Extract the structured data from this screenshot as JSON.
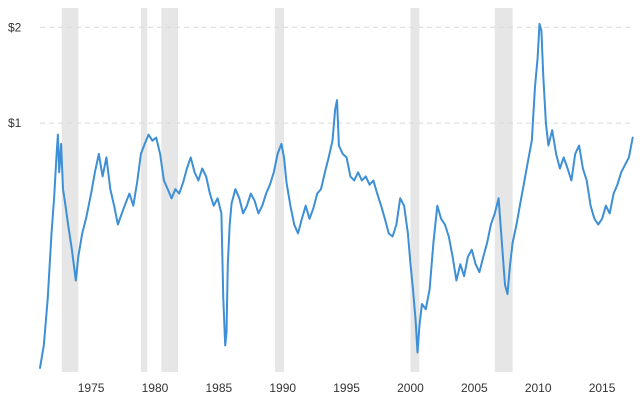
{
  "chart_data": {
    "type": "line",
    "xlim": [
      1971.0,
      2017.5
    ],
    "y_scale": "log",
    "ylim": [
      0.165,
      2.3
    ],
    "y_ticks": [
      {
        "value": 1,
        "label": "$1"
      },
      {
        "value": 2,
        "label": "$2"
      }
    ],
    "x_ticks": [
      {
        "value": 1975,
        "label": "1975"
      },
      {
        "value": 1980,
        "label": "1980"
      },
      {
        "value": 1985,
        "label": "1985"
      },
      {
        "value": 1990,
        "label": "1990"
      },
      {
        "value": 1995,
        "label": "1995"
      },
      {
        "value": 2000,
        "label": "2000"
      },
      {
        "value": 2005,
        "label": "2005"
      },
      {
        "value": 2010,
        "label": "2010"
      },
      {
        "value": 2015,
        "label": "2015"
      }
    ],
    "grid": "horizontal dashed",
    "recessions": [
      [
        1972.7,
        1974.0
      ],
      [
        1978.9,
        1979.4
      ],
      [
        1980.5,
        1981.8
      ],
      [
        1989.4,
        1990.1
      ],
      [
        2000.0,
        2000.7
      ],
      [
        2006.6,
        2008.0
      ]
    ],
    "series": [
      {
        "color": "#3d8fd6",
        "points": [
          [
            1971.0,
            0.17
          ],
          [
            1971.3,
            0.2
          ],
          [
            1971.6,
            0.28
          ],
          [
            1971.9,
            0.45
          ],
          [
            1972.1,
            0.58
          ],
          [
            1972.3,
            0.8
          ],
          [
            1972.4,
            0.92
          ],
          [
            1972.5,
            0.7
          ],
          [
            1972.65,
            0.86
          ],
          [
            1972.8,
            0.62
          ],
          [
            1973.0,
            0.55
          ],
          [
            1973.2,
            0.48
          ],
          [
            1973.5,
            0.4
          ],
          [
            1973.8,
            0.32
          ],
          [
            1974.0,
            0.38
          ],
          [
            1974.3,
            0.45
          ],
          [
            1974.6,
            0.5
          ],
          [
            1975.0,
            0.6
          ],
          [
            1975.3,
            0.7
          ],
          [
            1975.6,
            0.8
          ],
          [
            1975.9,
            0.68
          ],
          [
            1976.2,
            0.78
          ],
          [
            1976.5,
            0.62
          ],
          [
            1976.8,
            0.55
          ],
          [
            1977.1,
            0.48
          ],
          [
            1977.4,
            0.52
          ],
          [
            1977.7,
            0.56
          ],
          [
            1978.0,
            0.6
          ],
          [
            1978.3,
            0.55
          ],
          [
            1978.6,
            0.65
          ],
          [
            1978.9,
            0.8
          ],
          [
            1979.2,
            0.86
          ],
          [
            1979.5,
            0.92
          ],
          [
            1979.8,
            0.88
          ],
          [
            1980.1,
            0.9
          ],
          [
            1980.4,
            0.8
          ],
          [
            1980.7,
            0.66
          ],
          [
            1981.0,
            0.62
          ],
          [
            1981.3,
            0.58
          ],
          [
            1981.6,
            0.62
          ],
          [
            1981.9,
            0.6
          ],
          [
            1982.2,
            0.65
          ],
          [
            1982.5,
            0.72
          ],
          [
            1982.8,
            0.78
          ],
          [
            1983.1,
            0.7
          ],
          [
            1983.4,
            0.66
          ],
          [
            1983.7,
            0.72
          ],
          [
            1984.0,
            0.68
          ],
          [
            1984.3,
            0.6
          ],
          [
            1984.6,
            0.55
          ],
          [
            1984.9,
            0.58
          ],
          [
            1985.2,
            0.52
          ],
          [
            1985.35,
            0.28
          ],
          [
            1985.5,
            0.2
          ],
          [
            1985.6,
            0.22
          ],
          [
            1985.7,
            0.36
          ],
          [
            1985.85,
            0.48
          ],
          [
            1986.0,
            0.56
          ],
          [
            1986.3,
            0.62
          ],
          [
            1986.6,
            0.58
          ],
          [
            1986.9,
            0.52
          ],
          [
            1987.2,
            0.55
          ],
          [
            1987.5,
            0.6
          ],
          [
            1987.8,
            0.57
          ],
          [
            1988.1,
            0.52
          ],
          [
            1988.4,
            0.55
          ],
          [
            1988.7,
            0.6
          ],
          [
            1989.0,
            0.64
          ],
          [
            1989.3,
            0.7
          ],
          [
            1989.6,
            0.8
          ],
          [
            1989.9,
            0.86
          ],
          [
            1990.1,
            0.78
          ],
          [
            1990.3,
            0.65
          ],
          [
            1990.6,
            0.55
          ],
          [
            1990.9,
            0.48
          ],
          [
            1991.2,
            0.45
          ],
          [
            1991.5,
            0.5
          ],
          [
            1991.8,
            0.55
          ],
          [
            1992.1,
            0.5
          ],
          [
            1992.4,
            0.54
          ],
          [
            1992.7,
            0.6
          ],
          [
            1993.0,
            0.62
          ],
          [
            1993.3,
            0.7
          ],
          [
            1993.6,
            0.78
          ],
          [
            1993.9,
            0.88
          ],
          [
            1994.1,
            1.1
          ],
          [
            1994.25,
            1.18
          ],
          [
            1994.4,
            0.85
          ],
          [
            1994.7,
            0.8
          ],
          [
            1995.0,
            0.78
          ],
          [
            1995.3,
            0.68
          ],
          [
            1995.6,
            0.66
          ],
          [
            1995.9,
            0.7
          ],
          [
            1996.2,
            0.66
          ],
          [
            1996.5,
            0.68
          ],
          [
            1996.8,
            0.64
          ],
          [
            1997.1,
            0.66
          ],
          [
            1997.4,
            0.6
          ],
          [
            1997.7,
            0.55
          ],
          [
            1998.0,
            0.5
          ],
          [
            1998.3,
            0.45
          ],
          [
            1998.6,
            0.44
          ],
          [
            1998.9,
            0.48
          ],
          [
            1999.2,
            0.58
          ],
          [
            1999.5,
            0.55
          ],
          [
            1999.8,
            0.45
          ],
          [
            2000.0,
            0.36
          ],
          [
            2000.2,
            0.3
          ],
          [
            2000.4,
            0.24
          ],
          [
            2000.55,
            0.19
          ],
          [
            2000.7,
            0.23
          ],
          [
            2000.9,
            0.27
          ],
          [
            2001.2,
            0.26
          ],
          [
            2001.5,
            0.3
          ],
          [
            2001.8,
            0.42
          ],
          [
            2002.1,
            0.55
          ],
          [
            2002.4,
            0.5
          ],
          [
            2002.7,
            0.48
          ],
          [
            2003.0,
            0.44
          ],
          [
            2003.3,
            0.38
          ],
          [
            2003.6,
            0.32
          ],
          [
            2003.9,
            0.36
          ],
          [
            2004.2,
            0.33
          ],
          [
            2004.5,
            0.38
          ],
          [
            2004.8,
            0.4
          ],
          [
            2005.1,
            0.36
          ],
          [
            2005.4,
            0.34
          ],
          [
            2005.7,
            0.38
          ],
          [
            2006.0,
            0.42
          ],
          [
            2006.3,
            0.48
          ],
          [
            2006.6,
            0.52
          ],
          [
            2006.9,
            0.58
          ],
          [
            2007.2,
            0.4
          ],
          [
            2007.4,
            0.31
          ],
          [
            2007.6,
            0.29
          ],
          [
            2007.8,
            0.36
          ],
          [
            2008.0,
            0.42
          ],
          [
            2008.3,
            0.48
          ],
          [
            2008.6,
            0.56
          ],
          [
            2008.9,
            0.65
          ],
          [
            2009.2,
            0.76
          ],
          [
            2009.5,
            0.88
          ],
          [
            2009.75,
            1.3
          ],
          [
            2009.95,
            1.6
          ],
          [
            2010.1,
            2.05
          ],
          [
            2010.25,
            1.95
          ],
          [
            2010.4,
            1.4
          ],
          [
            2010.6,
            1.0
          ],
          [
            2010.8,
            0.85
          ],
          [
            2011.1,
            0.95
          ],
          [
            2011.4,
            0.8
          ],
          [
            2011.7,
            0.72
          ],
          [
            2012.0,
            0.78
          ],
          [
            2012.3,
            0.72
          ],
          [
            2012.6,
            0.66
          ],
          [
            2012.9,
            0.8
          ],
          [
            2013.2,
            0.85
          ],
          [
            2013.5,
            0.72
          ],
          [
            2013.8,
            0.66
          ],
          [
            2014.1,
            0.55
          ],
          [
            2014.4,
            0.5
          ],
          [
            2014.7,
            0.48
          ],
          [
            2015.0,
            0.5
          ],
          [
            2015.3,
            0.55
          ],
          [
            2015.6,
            0.52
          ],
          [
            2015.9,
            0.6
          ],
          [
            2016.2,
            0.64
          ],
          [
            2016.5,
            0.7
          ],
          [
            2016.8,
            0.74
          ],
          [
            2017.1,
            0.78
          ],
          [
            2017.4,
            0.9
          ]
        ]
      }
    ]
  }
}
